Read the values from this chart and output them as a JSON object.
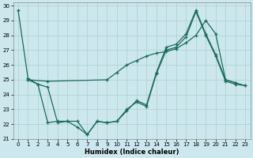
{
  "xlabel": "Humidex (Indice chaleur)",
  "background_color": "#cce8ee",
  "grid_color": "#aacfcc",
  "line_color": "#1a6b5a",
  "xlim": [
    -0.5,
    23.5
  ],
  "ylim": [
    21,
    30.2
  ],
  "yticks": [
    21,
    22,
    23,
    24,
    25,
    26,
    27,
    28,
    29,
    30
  ],
  "xticks": [
    0,
    1,
    2,
    3,
    4,
    5,
    6,
    7,
    8,
    9,
    10,
    11,
    12,
    13,
    14,
    15,
    16,
    17,
    18,
    19,
    20,
    21,
    22,
    23
  ],
  "series": [
    {
      "x": [
        0,
        1,
        2,
        3,
        4,
        5,
        6,
        7,
        8,
        9,
        10,
        11,
        12,
        13,
        14,
        15,
        16,
        17,
        18,
        19,
        20,
        21,
        22
      ],
      "y": [
        29.7,
        25.1,
        24.7,
        22.1,
        22.2,
        22.2,
        21.8,
        21.3,
        22.2,
        22.1,
        22.2,
        22.9,
        23.6,
        23.3,
        25.5,
        27.2,
        27.4,
        28.1,
        29.7,
        28.1,
        26.7,
        25.0,
        24.8
      ]
    },
    {
      "x": [
        1,
        3,
        9,
        10,
        11,
        12,
        13,
        14,
        15,
        16,
        17,
        18,
        19,
        20,
        21,
        22,
        23
      ],
      "y": [
        25.0,
        24.9,
        25.0,
        25.5,
        26.0,
        26.3,
        26.6,
        26.8,
        26.9,
        27.1,
        27.5,
        28.0,
        29.0,
        28.1,
        25.0,
        24.8,
        24.6
      ]
    },
    {
      "x": [
        1,
        2,
        3,
        4,
        5,
        6,
        7,
        8,
        9,
        10,
        11,
        12,
        13,
        14,
        15,
        16,
        17,
        18,
        19,
        20,
        21,
        22,
        23
      ],
      "y": [
        25.0,
        24.7,
        24.5,
        22.1,
        22.2,
        22.2,
        21.3,
        22.2,
        22.1,
        22.2,
        23.0,
        23.5,
        23.2,
        25.4,
        27.0,
        27.2,
        27.9,
        29.6,
        28.0,
        26.6,
        24.9,
        24.7,
        24.6
      ]
    }
  ]
}
